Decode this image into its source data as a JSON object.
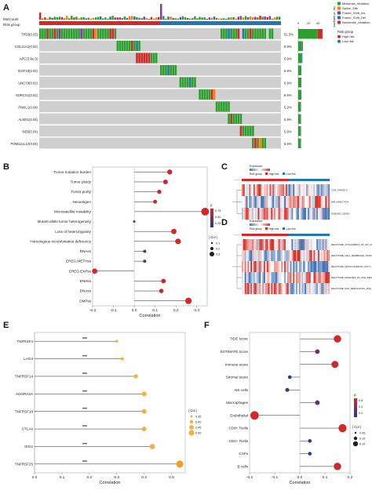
{
  "panel_labels": [
    "A",
    "B",
    "C",
    "D",
    "E",
    "F"
  ],
  "colors": {
    "Missense_Mutation": "#2ca02c",
    "Splice_Site": "#ff7f0e",
    "Frame_Shift_Ins": "#7e3f98",
    "Frame_Shift_Del": "#1f77b4",
    "Nonsense_Mutation": "#d62728",
    "high_risk": "#d62728",
    "low_risk": "#1f77b4",
    "tile_bg": "#cfcfcf",
    "heat_high": "#d73027",
    "heat_low": "#4575b4"
  },
  "panelA": {
    "tmb_label": "MutCount",
    "risk_label": "Risk group",
    "tmb_axis_label": "No. of samples",
    "tmb_axis_ticks": [
      "0",
      "20",
      "40"
    ],
    "genes": [
      {
        "name": "TP53(0.03)",
        "pct": "51.5%",
        "freq": 51.5
      },
      {
        "name": "COL11A1(0.02)",
        "pct": "9.9%",
        "freq": 9.9
      },
      {
        "name": "APC(3.9e-3)",
        "pct": "8.9%",
        "freq": 8.9
      },
      {
        "name": "IGSF10(0.02)",
        "pct": "6.9%",
        "freq": 6.9
      },
      {
        "name": "UNC79(0.02)",
        "pct": "6.9%",
        "freq": 6.9
      },
      {
        "name": "SORCS1(0.02)",
        "pct": "6.9%",
        "freq": 6.9
      },
      {
        "name": "PIWIL1(0.04)",
        "pct": "5.9%",
        "freq": 5.9
      },
      {
        "name": "ALMS1(0.04)",
        "pct": "5.9%",
        "freq": 5.9
      },
      {
        "name": "NEB(0.04)",
        "pct": "5.9%",
        "freq": 5.9
      },
      {
        "name": "POM121L12(0.04)",
        "pct": "5.9%",
        "freq": 5.9
      }
    ],
    "legend_mutations": [
      "Missense_Mutation",
      "Splice_Site",
      "Frame_Shift_Ins",
      "Frame_Shift_Del",
      "Nonsense_Mutation"
    ],
    "legend_risk_title": "Risk group",
    "legend_risk": [
      "High risk",
      "Low risk"
    ]
  },
  "panelB": {
    "chart_data": {
      "type": "scatter",
      "xlabel": "Correlation",
      "xlim": [
        -0.2,
        0.35
      ],
      "xticks": [
        "-0.2",
        "-0.1",
        "0.0",
        "0.1",
        "0.2",
        "0.3"
      ],
      "categories": [
        "Tumor mutation burden",
        "Tumor ploidy",
        "Tumor purity",
        "Neoantigen",
        "Microsatellite instability",
        "Mutant-allele tumor heterogeneity",
        "Loss of heterozygosity",
        "Homologous recombination deficiency",
        "RNAss",
        "EREG.METHss",
        "EREG.EXPss",
        "ENHss",
        "DNAss",
        "DMPss"
      ],
      "correlation": [
        0.17,
        0.15,
        0.12,
        0.1,
        0.34,
        0.0,
        0.19,
        0.21,
        0.05,
        0.05,
        -0.19,
        0.14,
        0.13,
        0.26
      ],
      "p": [
        0.05,
        0.08,
        0.06,
        0.07,
        0.02,
        0.9,
        0.04,
        0.03,
        0.6,
        0.55,
        0.03,
        0.06,
        0.07,
        0.01
      ],
      "legend_p_title": "p",
      "legend_p_ticks": [
        "0.75",
        "0.50",
        "0.25"
      ],
      "legend_cor_title": "| Cor |",
      "legend_cor_ticks": [
        "0.1",
        "0.2",
        "0.3"
      ]
    }
  },
  "panelC": {
    "legend_title": "Expression",
    "risk_title": "Risk group",
    "risk_items": [
      "High risk",
      "Low risk"
    ],
    "row_labels": [
      "CCR_TARGETS",
      "MIR_INFECTION",
      "DISEASE_GENES"
    ]
  },
  "panelD": {
    "legend_title": "Expression",
    "risk_title": "Risk group",
    "risk_items": [
      "High risk",
      "Low risk"
    ],
    "row_labels": [
      "REACTOME_ATTACHMENT_OF_GPI_ANCHOR_TO_UPAR",
      "REACTOME_CELL_MEMBRANE_TRAFFICKING",
      "REACTOME_MITOCHONDRIAL_FATTY_ACID",
      "REACTOME_DISEASES_OF_DNA_REPAIR",
      "REACTOME_DNA_REPLICATION_PRE_INITIATION"
    ]
  },
  "panelE": {
    "chart_data": {
      "type": "scatter",
      "xlabel": "Correlation",
      "xlim": [
        0,
        0.55
      ],
      "xticks": [
        "0.0",
        "0.1",
        "0.2",
        "0.3",
        "0.4",
        "0.5"
      ],
      "categories": [
        "TNFRSF4",
        "LAG3",
        "TNFRSF14",
        "ADORA2A",
        "TNFRSF18",
        "CTLA4",
        "IDO2",
        "TNFRSF25"
      ],
      "correlation": [
        0.3,
        0.32,
        0.37,
        0.4,
        0.4,
        0.4,
        0.43,
        0.53
      ],
      "significance": [
        "***",
        "***",
        "***",
        "***",
        "***",
        "***",
        "***",
        "***"
      ],
      "legend_cor_title": "| Cor |",
      "legend_cor_ticks": [
        "0.35",
        "0.40",
        "0.45",
        "0.50"
      ]
    }
  },
  "panelF": {
    "chart_data": {
      "type": "scatter",
      "xlabel": "Correlation",
      "xlim": [
        -0.2,
        0.2
      ],
      "xticks": [
        "-0.2",
        "-0.1",
        "0.0",
        "0.1",
        "0.2"
      ],
      "categories": [
        "TIDE score",
        "ESTIMATE score",
        "Immune score",
        "Stromal score",
        "NK cells",
        "Macrophages",
        "Endothelial",
        "CD8+ Tcells",
        "CD4+ Tcells",
        "CAFs",
        "B cells"
      ],
      "correlation": [
        0.15,
        0.07,
        0.14,
        -0.04,
        -0.05,
        0.07,
        -0.18,
        0.17,
        0.04,
        0.04,
        0.15
      ],
      "p": [
        0.02,
        0.35,
        0.03,
        0.55,
        0.5,
        0.4,
        0.01,
        0.01,
        0.6,
        0.6,
        0.03
      ],
      "legend_p_title": "p",
      "legend_p_ticks": [
        "0.6",
        "0.4",
        "0.2"
      ],
      "legend_cor_title": "| Cor |",
      "legend_cor_ticks": [
        "0.05",
        "0.10",
        "0.15"
      ]
    }
  }
}
